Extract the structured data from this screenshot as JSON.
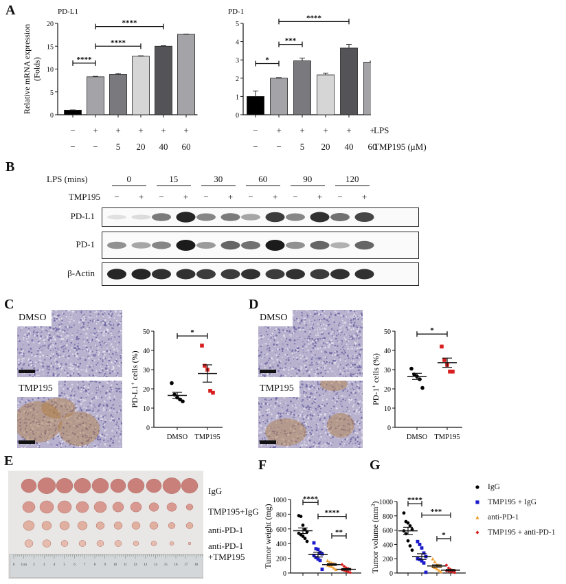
{
  "panels": {
    "A": {
      "letter": "A"
    },
    "B": {
      "letter": "B"
    },
    "C": {
      "letter": "C"
    },
    "D": {
      "letter": "D"
    },
    "E": {
      "letter": "E"
    },
    "F": {
      "letter": "F"
    },
    "G": {
      "letter": "G"
    }
  },
  "panelA": {
    "row_labels": {
      "lps": "LPS",
      "tmp": "TMP195 (μM)"
    },
    "lps_signs": [
      "−",
      "+",
      "+",
      "+",
      "+",
      "+"
    ],
    "tmp_values": [
      "−",
      "−",
      "5",
      "20",
      "40",
      "60"
    ]
  },
  "panelB": {
    "lps_label": "LPS (mins)",
    "tmp_label": "TMP195",
    "timepoints": [
      "0",
      "15",
      "30",
      "60",
      "90",
      "120"
    ],
    "tmp_signs": [
      "−",
      "+",
      "−",
      "+",
      "−",
      "+",
      "−",
      "+",
      "−",
      "+",
      "−",
      "+"
    ],
    "blots": [
      {
        "name": "PD-L1",
        "intensities": [
          0.08,
          0.1,
          0.55,
          0.95,
          0.5,
          0.55,
          0.35,
          0.85,
          0.5,
          0.9,
          0.6,
          0.8
        ]
      },
      {
        "name": "PD-1",
        "intensities": [
          0.45,
          0.35,
          0.5,
          1.0,
          0.4,
          0.65,
          0.6,
          1.0,
          0.45,
          0.65,
          0.3,
          0.65
        ]
      },
      {
        "name": "β-Actin",
        "intensities": [
          0.95,
          0.95,
          0.9,
          0.9,
          0.85,
          0.85,
          0.9,
          0.85,
          0.9,
          0.85,
          0.9,
          0.9
        ]
      }
    ]
  },
  "panelC": {
    "dmso_tag": "DMSO",
    "tmp_tag": "TMP195"
  },
  "panelD": {
    "dmso_tag": "DMSO",
    "tmp_tag": "TMP195"
  },
  "panelE": {
    "row_labels": [
      "IgG",
      "TMP195+IgG",
      "anti-PD-1",
      "anti-PD-1",
      "+TMP195"
    ],
    "ruler_ticks": [
      "0",
      "1cm",
      "2",
      "3",
      "4",
      "5",
      "6",
      "7",
      "8",
      "9",
      "10",
      "11",
      "12",
      "13",
      "14",
      "15",
      "16",
      "17",
      "18",
      "19"
    ]
  },
  "legendFG": {
    "items": [
      {
        "label": "IgG",
        "color": "#000000",
        "marker": "circle"
      },
      {
        "label": "TMP195 + IgG",
        "color": "#1a1acc",
        "marker": "square"
      },
      {
        "label": "anti-PD-1",
        "color": "#f0a030",
        "marker": "triangle"
      },
      {
        "label": "TMP195 + anti-PD-1",
        "color": "#d81e1e",
        "marker": "diamond"
      }
    ]
  },
  "chart_data": [
    {
      "id": "A-left",
      "type": "bar",
      "title": "PD-L1",
      "ylabel": "Relative mRNA expression (Folds)",
      "xlabel": "",
      "ylim": [
        0,
        20
      ],
      "yticks": [
        0,
        5,
        10,
        15,
        20
      ],
      "categories": [
        "-/-",
        "+/-",
        "+/5",
        "+/20",
        "+/40",
        "+/60"
      ],
      "values": [
        1.0,
        8.3,
        8.8,
        12.8,
        15.0,
        17.6
      ],
      "errors": [
        0.05,
        0.1,
        0.25,
        0.1,
        0.1,
        0.05
      ],
      "colors": [
        "#000000",
        "#a3a3a8",
        "#7a7a7e",
        "#d6d6d6",
        "#545458",
        "#a3a3a8"
      ],
      "significance": [
        {
          "from": 0,
          "to": 1,
          "label": "****",
          "y": 11.3
        },
        {
          "from": 1,
          "to": 3,
          "label": "****",
          "y": 15.0
        },
        {
          "from": 1,
          "to": 4,
          "label": "****",
          "y": 19.3
        }
      ]
    },
    {
      "id": "A-right",
      "type": "bar",
      "title": "PD-1",
      "ylabel": "",
      "xlabel": "",
      "ylim": [
        0,
        5
      ],
      "yticks": [
        0,
        1,
        2,
        3,
        4,
        5
      ],
      "categories": [
        "-/-",
        "+/-",
        "+/5",
        "+/20",
        "+/40",
        "+/60"
      ],
      "values": [
        1.0,
        2.0,
        2.95,
        2.18,
        3.65,
        2.88
      ],
      "errors": [
        0.3,
        0.03,
        0.15,
        0.1,
        0.2,
        0.05
      ],
      "colors": [
        "#000000",
        "#a3a3a8",
        "#7a7a7e",
        "#d6d6d6",
        "#545458",
        "#a3a3a8"
      ],
      "significance": [
        {
          "from": 0,
          "to": 1,
          "label": "*",
          "y": 2.8
        },
        {
          "from": 1,
          "to": 2,
          "label": "***",
          "y": 3.85
        },
        {
          "from": 1,
          "to": 4,
          "label": "****",
          "y": 5.1
        }
      ]
    },
    {
      "id": "C",
      "type": "scatter",
      "title": "",
      "ylabel": "PD-L1+ cells (%)",
      "xlabel": "",
      "ylim": [
        0,
        50
      ],
      "yticks": [
        0,
        10,
        20,
        30,
        40,
        50
      ],
      "categories": [
        "DMSO",
        "TMP195"
      ],
      "series": [
        {
          "name": "DMSO",
          "color": "#000000",
          "marker": "circle",
          "values": [
            23,
            17,
            15.5,
            14.5,
            13.5
          ],
          "mean": 16.6,
          "sem": 1.6
        },
        {
          "name": "TMP195",
          "color": "#d81e1e",
          "marker": "square",
          "values": [
            42.5,
            32,
            30,
            19,
            18
          ],
          "mean": 28,
          "sem": 4.5
        }
      ],
      "significance": [
        {
          "from": 0,
          "to": 1,
          "label": "*",
          "y": 47.5
        }
      ]
    },
    {
      "id": "D",
      "type": "scatter",
      "title": "",
      "ylabel": "PD-1+ cells (%)",
      "xlabel": "",
      "ylim": [
        0,
        50
      ],
      "yticks": [
        0,
        10,
        20,
        30,
        40,
        50
      ],
      "categories": [
        "DMSO",
        "TMP195"
      ],
      "series": [
        {
          "name": "DMSO",
          "color": "#000000",
          "marker": "circle",
          "values": [
            30.5,
            27.5,
            26.5,
            25,
            20.5
          ],
          "mean": 26.5,
          "sem": 1.6
        },
        {
          "name": "TMP195",
          "color": "#d81e1e",
          "marker": "square",
          "values": [
            42,
            35,
            32.5,
            29,
            29
          ],
          "mean": 33.6,
          "sem": 2.4
        }
      ],
      "significance": [
        {
          "from": 0,
          "to": 1,
          "label": "*",
          "y": 48.5
        }
      ]
    },
    {
      "id": "F",
      "type": "scatter",
      "title": "",
      "ylabel": "Tumor weight (mg)",
      "xlabel": "",
      "ylim": [
        0,
        1000
      ],
      "yticks": [
        0,
        200,
        400,
        600,
        800,
        1000
      ],
      "categories": [
        "IgG",
        "TMP195 + IgG",
        "anti-PD-1",
        "TMP195 + anti-PD-1"
      ],
      "series": [
        {
          "name": "IgG",
          "color": "#000000",
          "marker": "circle",
          "values": [
            780,
            770,
            650,
            590,
            560,
            540,
            520,
            500,
            470,
            430
          ],
          "mean": 575,
          "sem": 38
        },
        {
          "name": "TMP195 + IgG",
          "color": "#1a1acc",
          "marker": "square",
          "values": [
            410,
            330,
            320,
            280,
            260,
            240,
            210,
            190,
            170,
            50
          ],
          "mean": 250,
          "sem": 32
        },
        {
          "name": "anti-PD-1",
          "color": "#f0a030",
          "marker": "triangle",
          "values": [
            170,
            150,
            140,
            130,
            120,
            110,
            100,
            90,
            70,
            50
          ],
          "mean": 115,
          "sem": 12
        },
        {
          "name": "TMP195 + anti-PD-1",
          "color": "#d81e1e",
          "marker": "diamond",
          "values": [
            115,
            90,
            70,
            60,
            50,
            45,
            35,
            25,
            15,
            5
          ],
          "mean": 50,
          "sem": 11
        }
      ],
      "significance": [
        {
          "from": 0,
          "to": 1,
          "label": "****",
          "y": 960
        },
        {
          "from": 1,
          "to": 3,
          "label": "****",
          "y": 770
        },
        {
          "from": 2,
          "to": 3,
          "label": "**",
          "y": 505
        }
      ]
    },
    {
      "id": "G",
      "type": "scatter",
      "title": "",
      "ylabel": "Tumor volume (mm3)",
      "xlabel": "",
      "ylim": [
        0,
        1000
      ],
      "yticks": [
        0,
        200,
        400,
        600,
        800,
        1000
      ],
      "categories": [
        "IgG",
        "TMP195 + IgG",
        "anti-PD-1",
        "TMP195 + anti-PD-1"
      ],
      "series": [
        {
          "name": "IgG",
          "color": "#000000",
          "marker": "circle",
          "values": [
            840,
            720,
            700,
            660,
            610,
            590,
            550,
            450,
            380,
            320
          ],
          "mean": 590,
          "sem": 50
        },
        {
          "name": "TMP195 + IgG",
          "color": "#1a1acc",
          "marker": "square",
          "values": [
            440,
            400,
            350,
            280,
            230,
            200,
            190,
            170,
            140,
            10
          ],
          "mean": 230,
          "sem": 40
        },
        {
          "name": "anti-PD-1",
          "color": "#f0a030",
          "marker": "triangle",
          "values": [
            200,
            160,
            120,
            110,
            100,
            90,
            80,
            60,
            40,
            20
          ],
          "mean": 98,
          "sem": 16
        },
        {
          "name": "TMP195 + anti-PD-1",
          "color": "#d81e1e",
          "marker": "diamond",
          "values": [
            110,
            70,
            50,
            40,
            35,
            30,
            25,
            20,
            15,
            5
          ],
          "mean": 40,
          "sem": 10
        }
      ],
      "significance": [
        {
          "from": 0,
          "to": 1,
          "label": "****",
          "y": 970
        },
        {
          "from": 1,
          "to": 3,
          "label": "***",
          "y": 810
        },
        {
          "from": 2,
          "to": 3,
          "label": "*",
          "y": 480
        }
      ]
    }
  ]
}
